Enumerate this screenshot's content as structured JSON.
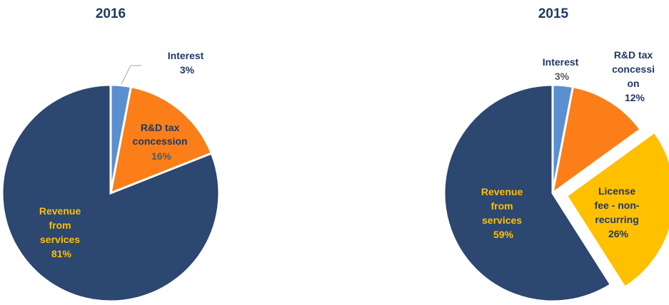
{
  "chart_data": [
    {
      "type": "pie",
      "title": "2016",
      "slices": [
        {
          "label": [
            "Interest"
          ],
          "pct": "3%",
          "value": 3,
          "color": "#5b8fd0"
        },
        {
          "label": [
            "R&D tax",
            "concession"
          ],
          "pct": "16%",
          "value": 16,
          "color": "#fb7e18"
        },
        {
          "label": [
            "Revenue",
            "from",
            "services"
          ],
          "pct": "81%",
          "value": 81,
          "color": "#2c4770"
        }
      ]
    },
    {
      "type": "pie",
      "title": "2015",
      "slices": [
        {
          "label": [
            "Interest"
          ],
          "pct": "3%",
          "value": 3,
          "color": "#5b8fd0"
        },
        {
          "label": [
            "R&D tax",
            "concessi",
            "on"
          ],
          "pct": "12%",
          "value": 12,
          "color": "#fb7e18"
        },
        {
          "label": [
            "License",
            "fee - non-",
            "recurring"
          ],
          "pct": "26%",
          "value": 26,
          "color": "#ffc000",
          "exploded": true
        },
        {
          "label": [
            "Revenue",
            "from",
            "services"
          ],
          "pct": "59%",
          "value": 59,
          "color": "#2c4770"
        }
      ]
    }
  ],
  "colors": {
    "title": "#1f3864",
    "label_dark": "#1f3864",
    "label_light": "#ffc000",
    "pct_grey": "#595959",
    "leader": "#a6a6a6"
  }
}
